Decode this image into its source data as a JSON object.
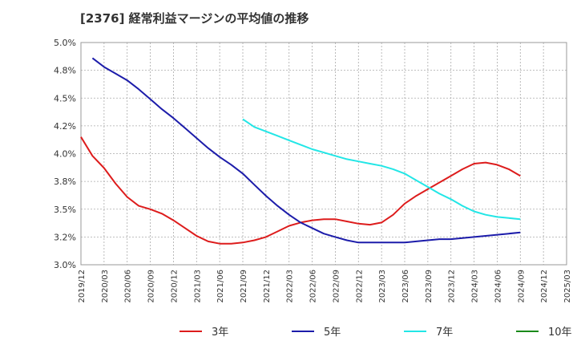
{
  "chart_data": {
    "type": "line",
    "title": "[2376]  経常利益マージンの平均値の推移",
    "xlabel": "",
    "ylabel": "",
    "ylim": [
      3.0,
      5.0
    ],
    "y_ticks": [
      "3.0%",
      "3.2%",
      "3.5%",
      "3.8%",
      "4.0%",
      "4.2%",
      "4.5%",
      "4.8%",
      "5.0%"
    ],
    "y_tick_values": [
      3.0,
      3.25,
      3.5,
      3.75,
      4.0,
      4.25,
      4.5,
      4.75,
      5.0
    ],
    "x_ticks": [
      "2019/12",
      "2020/03",
      "2020/06",
      "2020/09",
      "2020/12",
      "2021/03",
      "2021/06",
      "2021/09",
      "2021/12",
      "2022/03",
      "2022/06",
      "2022/09",
      "2022/12",
      "2023/03",
      "2023/06",
      "2023/09",
      "2023/12",
      "2024/03",
      "2024/06",
      "2024/09",
      "2024/12",
      "2025/03"
    ],
    "grid": true,
    "legend_position": "bottom",
    "series": [
      {
        "name": "3年",
        "color": "#dd1c1c",
        "points": [
          [
            0,
            4.15
          ],
          [
            1,
            3.98
          ],
          [
            2,
            3.87
          ],
          [
            3,
            3.73
          ],
          [
            4,
            3.61
          ],
          [
            5,
            3.53
          ],
          [
            6,
            3.5
          ],
          [
            7,
            3.46
          ],
          [
            8,
            3.4
          ],
          [
            9,
            3.33
          ],
          [
            10,
            3.26
          ],
          [
            11,
            3.21
          ],
          [
            12,
            3.19
          ],
          [
            13,
            3.19
          ],
          [
            14,
            3.2
          ],
          [
            15,
            3.22
          ],
          [
            16,
            3.25
          ],
          [
            17,
            3.3
          ],
          [
            18,
            3.35
          ],
          [
            19,
            3.38
          ],
          [
            20,
            3.4
          ],
          [
            21,
            3.41
          ],
          [
            22,
            3.41
          ],
          [
            23,
            3.39
          ],
          [
            24,
            3.37
          ],
          [
            25,
            3.36
          ],
          [
            26,
            3.38
          ],
          [
            27,
            3.45
          ],
          [
            28,
            3.55
          ],
          [
            29,
            3.62
          ],
          [
            30,
            3.68
          ],
          [
            31,
            3.74
          ],
          [
            32,
            3.8
          ],
          [
            33,
            3.86
          ],
          [
            34,
            3.91
          ],
          [
            35,
            3.92
          ],
          [
            36,
            3.9
          ],
          [
            37,
            3.86
          ],
          [
            38,
            3.8
          ]
        ]
      },
      {
        "name": "5年",
        "color": "#1c1caa",
        "points": [
          [
            1,
            4.86
          ],
          [
            2,
            4.78
          ],
          [
            3,
            4.72
          ],
          [
            4,
            4.66
          ],
          [
            5,
            4.58
          ],
          [
            6,
            4.49
          ],
          [
            7,
            4.4
          ],
          [
            8,
            4.32
          ],
          [
            9,
            4.23
          ],
          [
            10,
            4.14
          ],
          [
            11,
            4.05
          ],
          [
            12,
            3.97
          ],
          [
            13,
            3.9
          ],
          [
            14,
            3.82
          ],
          [
            15,
            3.72
          ],
          [
            16,
            3.62
          ],
          [
            17,
            3.53
          ],
          [
            18,
            3.45
          ],
          [
            19,
            3.38
          ],
          [
            20,
            3.33
          ],
          [
            21,
            3.28
          ],
          [
            22,
            3.25
          ],
          [
            23,
            3.22
          ],
          [
            24,
            3.2
          ],
          [
            25,
            3.2
          ],
          [
            26,
            3.2
          ],
          [
            27,
            3.2
          ],
          [
            28,
            3.2
          ],
          [
            29,
            3.21
          ],
          [
            30,
            3.22
          ],
          [
            31,
            3.23
          ],
          [
            32,
            3.23
          ],
          [
            33,
            3.24
          ],
          [
            34,
            3.25
          ],
          [
            35,
            3.26
          ],
          [
            36,
            3.27
          ],
          [
            37,
            3.28
          ],
          [
            38,
            3.29
          ]
        ]
      },
      {
        "name": "7年",
        "color": "#22e6e6",
        "points": [
          [
            14,
            4.31
          ],
          [
            15,
            4.24
          ],
          [
            16,
            4.2
          ],
          [
            17,
            4.16
          ],
          [
            18,
            4.12
          ],
          [
            19,
            4.08
          ],
          [
            20,
            4.04
          ],
          [
            21,
            4.01
          ],
          [
            22,
            3.98
          ],
          [
            23,
            3.95
          ],
          [
            24,
            3.93
          ],
          [
            25,
            3.91
          ],
          [
            26,
            3.89
          ],
          [
            27,
            3.86
          ],
          [
            28,
            3.82
          ],
          [
            29,
            3.76
          ],
          [
            30,
            3.7
          ],
          [
            31,
            3.64
          ],
          [
            32,
            3.59
          ],
          [
            33,
            3.53
          ],
          [
            34,
            3.48
          ],
          [
            35,
            3.45
          ],
          [
            36,
            3.43
          ],
          [
            37,
            3.42
          ],
          [
            38,
            3.41
          ]
        ]
      },
      {
        "name": "10年",
        "color": "#1a8a1a",
        "points": []
      }
    ]
  }
}
